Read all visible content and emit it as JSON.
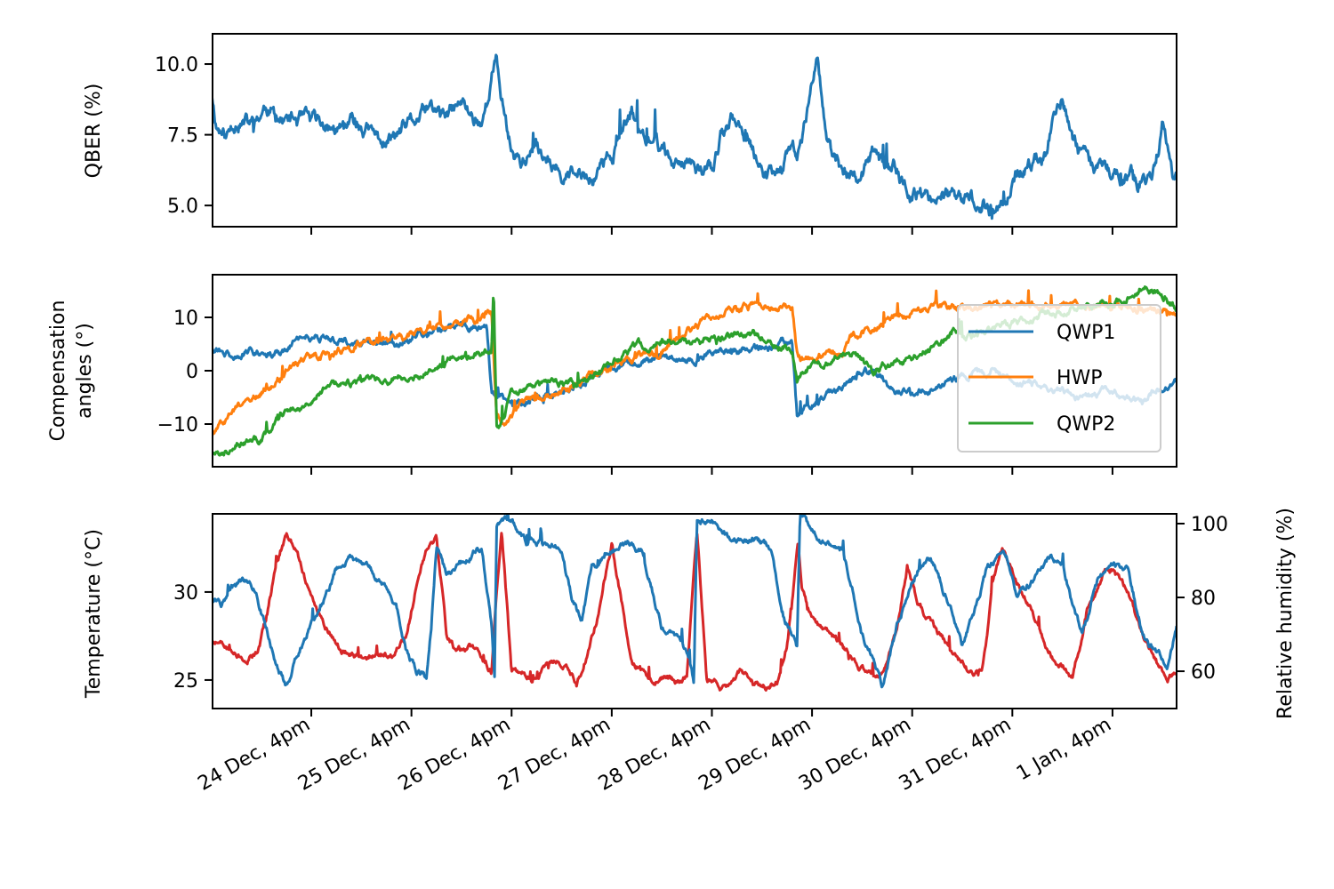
{
  "chart_data": [
    {
      "type": "line",
      "panel": "qber",
      "title": "",
      "xlabel": "",
      "ylabel": "QBER (%)",
      "x_units": "days since 24 Dec, 4pm",
      "xlim": [
        -0.986,
        8.64
      ],
      "ylim": [
        4.25,
        11.07
      ],
      "yticks": [
        5.0,
        7.5,
        10.0
      ],
      "ytick_labels": [
        "5.0",
        "7.5",
        "10.0"
      ],
      "grid": false,
      "series": [
        {
          "name": "QBER",
          "color": "#1f77b4",
          "x": [
            -0.99,
            -0.95,
            -0.85,
            -0.75,
            -0.6,
            -0.45,
            -0.3,
            -0.15,
            0.0,
            0.15,
            0.3,
            0.45,
            0.6,
            0.75,
            0.9,
            1.05,
            1.2,
            1.35,
            1.5,
            1.6,
            1.7,
            1.75,
            1.8,
            1.85,
            1.9,
            2.0,
            2.1,
            2.2,
            2.35,
            2.5,
            2.65,
            2.8,
            2.95,
            3.1,
            3.2,
            3.3,
            3.45,
            3.6,
            3.7,
            3.8,
            3.9,
            4.0,
            4.1,
            4.2,
            4.3,
            4.4,
            4.55,
            4.7,
            4.8,
            4.85,
            4.9,
            4.95,
            5.0,
            5.05,
            5.15,
            5.3,
            5.45,
            5.6,
            5.7,
            5.85,
            6.0,
            6.15,
            6.3,
            6.45,
            6.6,
            6.7,
            6.8,
            6.85,
            6.9,
            6.95,
            7.05,
            7.2,
            7.35,
            7.45,
            7.55,
            7.65,
            7.8,
            7.95,
            8.1,
            8.25,
            8.4,
            8.5,
            8.55,
            8.6,
            8.64
          ],
          "y": [
            8.9,
            7.9,
            7.4,
            8.1,
            7.8,
            8.5,
            8.0,
            8.0,
            7.9,
            7.8,
            7.6,
            7.9,
            7.5,
            7.2,
            7.6,
            8.0,
            8.4,
            8.1,
            8.6,
            8.2,
            8.0,
            8.6,
            9.6,
            10.1,
            8.8,
            7.0,
            6.6,
            6.9,
            6.8,
            6.3,
            6.0,
            5.9,
            6.6,
            7.4,
            8.3,
            7.5,
            7.2,
            6.6,
            6.3,
            6.8,
            6.2,
            6.3,
            7.5,
            8.2,
            7.4,
            6.9,
            6.2,
            6.5,
            7.0,
            6.8,
            7.4,
            8.1,
            9.5,
            10.6,
            7.1,
            6.1,
            5.9,
            6.7,
            6.4,
            6.3,
            5.2,
            5.3,
            5.5,
            5.1,
            5.2,
            5.0,
            4.9,
            5.0,
            5.1,
            5.3,
            6.1,
            6.4,
            7.0,
            8.7,
            8.0,
            7.0,
            6.4,
            6.2,
            6.0,
            5.8,
            6.0,
            7.8,
            7.0,
            6.2,
            6.0
          ]
        }
      ]
    },
    {
      "type": "line",
      "panel": "compensation",
      "title": "",
      "xlabel": "",
      "ylabel": "Compensation\nangles (°)",
      "ylabel_lines": [
        "Compensation",
        "angles (°)"
      ],
      "x_units": "days since 24 Dec, 4pm",
      "xlim": [
        -0.986,
        8.64
      ],
      "ylim": [
        -18,
        18
      ],
      "yticks": [
        -10,
        0,
        10
      ],
      "ytick_labels": [
        "−10",
        "0",
        "10"
      ],
      "grid": false,
      "legend": {
        "placement": "lower-right",
        "entries": [
          "QWP1",
          "HWP",
          "QWP2"
        ]
      },
      "series": [
        {
          "name": "QWP1",
          "color": "#1f77b4",
          "x": [
            -0.99,
            -0.8,
            -0.5,
            -0.3,
            -0.1,
            0.2,
            0.5,
            0.8,
            1.1,
            1.4,
            1.7,
            1.75,
            1.8,
            1.85,
            2.0,
            2.3,
            2.6,
            2.9,
            3.2,
            3.5,
            3.8,
            4.1,
            4.4,
            4.7,
            4.8,
            4.85,
            4.9,
            5.1,
            5.4,
            5.6,
            5.8,
            6.0,
            6.2,
            6.5,
            6.8,
            7.1,
            7.4,
            7.7,
            8.0,
            8.3,
            8.5,
            8.64
          ],
          "y": [
            4.5,
            2.5,
            4,
            3,
            7,
            6,
            5,
            5,
            7,
            8,
            8,
            8.5,
            -4,
            -5,
            -6,
            -5,
            -3,
            0,
            1,
            3,
            2,
            4,
            4,
            5,
            6,
            -8,
            -7,
            -5,
            -2,
            0,
            -3,
            -5,
            -3,
            -1,
            0,
            -2,
            -3,
            -5,
            -4,
            -6,
            -3,
            -2
          ]
        },
        {
          "name": "HWP",
          "color": "#ff7f0e",
          "x": [
            -0.99,
            -0.8,
            -0.5,
            -0.3,
            -0.1,
            0.2,
            0.5,
            0.8,
            1.1,
            1.4,
            1.7,
            1.8,
            1.85,
            1.95,
            2.1,
            2.3,
            2.6,
            2.9,
            3.2,
            3.5,
            3.8,
            4.1,
            4.4,
            4.7,
            4.8,
            4.85,
            4.9,
            5.1,
            5.3,
            5.4,
            5.6,
            5.8,
            6.0,
            6.3,
            6.6,
            6.9,
            7.2,
            7.5,
            7.8,
            8.1,
            8.4,
            8.64
          ],
          "y": [
            -12,
            -8,
            -4,
            -1,
            2,
            3,
            5,
            6,
            7,
            9,
            10,
            10.5,
            -9,
            -10,
            -6,
            -5,
            -3,
            0,
            2,
            4,
            8,
            11,
            12,
            12,
            12,
            3,
            2,
            3,
            3,
            6,
            8,
            10,
            11,
            12,
            12,
            12,
            12,
            12,
            12,
            12,
            12,
            11
          ]
        },
        {
          "name": "QWP2",
          "color": "#2ca02c",
          "x": [
            -0.99,
            -0.9,
            -0.75,
            -0.5,
            -0.3,
            -0.1,
            0.2,
            0.5,
            0.8,
            1.1,
            1.4,
            1.65,
            1.8,
            1.82,
            1.85,
            1.9,
            2.0,
            2.3,
            2.6,
            2.9,
            3.2,
            3.5,
            3.8,
            4.1,
            4.4,
            4.7,
            4.8,
            4.85,
            4.9,
            5.0,
            5.2,
            5.4,
            5.6,
            5.8,
            6.0,
            6.2,
            6.4,
            6.6,
            6.8,
            7.0,
            7.2,
            7.5,
            7.8,
            8.1,
            8.3,
            8.5,
            8.64
          ],
          "y": [
            -15,
            -16,
            -13,
            -13,
            -8,
            -6,
            -3,
            -2,
            -1,
            -1,
            2,
            3,
            4,
            16,
            -10,
            -10,
            -4,
            -3,
            -2,
            0,
            4,
            6,
            5,
            6,
            7,
            5,
            4,
            -2,
            -1,
            1,
            2,
            3,
            0,
            1,
            2,
            4,
            7,
            6,
            8,
            9,
            10,
            11,
            12,
            13,
            16,
            14,
            12
          ]
        }
      ]
    },
    {
      "type": "line",
      "panel": "environment",
      "title": "",
      "xlabel": "",
      "ylabel": "Temperature (°C)",
      "ylabel_right": "Relative humidity (%)",
      "x_units": "days since 24 Dec, 4pm",
      "xlim": [
        -0.986,
        8.64
      ],
      "ylim": [
        23.38,
        34.44
      ],
      "ylim_right": [
        49.9,
        102.65
      ],
      "yticks": [
        25,
        30
      ],
      "ytick_labels": [
        "25",
        "30"
      ],
      "yticks_right": [
        60,
        80,
        100
      ],
      "ytick_labels_right": [
        "60",
        "80",
        "100"
      ],
      "grid": false,
      "xtick_labels": [
        "24 Dec, 4pm",
        "25 Dec, 4pm",
        "26 Dec, 4pm",
        "27 Dec, 4pm",
        "28 Dec, 4pm",
        "29 Dec, 4pm",
        "30 Dec, 4pm",
        "31 Dec, 4pm",
        "1 Jan, 4pm"
      ],
      "xticks": [
        0,
        1,
        2,
        3,
        4,
        5,
        6,
        7,
        8
      ],
      "series": [
        {
          "name": "Temperature",
          "axis": "left",
          "color": "#d62728",
          "x": [
            -0.99,
            -0.85,
            -0.7,
            -0.55,
            -0.45,
            -0.35,
            -0.25,
            -0.15,
            -0.05,
            0.1,
            0.3,
            0.5,
            0.65,
            0.8,
            0.95,
            1.05,
            1.15,
            1.25,
            1.3,
            1.35,
            1.45,
            1.6,
            1.75,
            1.8,
            1.85,
            1.9,
            2.0,
            2.2,
            2.4,
            2.55,
            2.65,
            2.75,
            2.85,
            3.0,
            3.2,
            3.4,
            3.55,
            3.65,
            3.75,
            3.8,
            3.85,
            3.95,
            4.1,
            4.3,
            4.5,
            4.65,
            4.75,
            4.82,
            4.86,
            4.9,
            5.0,
            5.2,
            5.4,
            5.55,
            5.7,
            5.85,
            5.95,
            6.05,
            6.2,
            6.4,
            6.6,
            6.7,
            6.75,
            6.8,
            6.9,
            7.1,
            7.3,
            7.45,
            7.55,
            7.6,
            7.65,
            7.75,
            7.95,
            8.15,
            8.3,
            8.45,
            8.55,
            8.64
          ],
          "y": [
            27.2,
            26.8,
            26.3,
            26.5,
            28.5,
            31.5,
            33.3,
            32.5,
            30.5,
            28.5,
            26.8,
            26.2,
            26.5,
            26.4,
            27.5,
            30.5,
            32.5,
            33.0,
            30.5,
            27.5,
            26.5,
            26.8,
            26.0,
            25.5,
            30.0,
            33.5,
            25.5,
            25.2,
            26.0,
            25.8,
            24.7,
            26.5,
            28.5,
            32.8,
            26.0,
            24.8,
            25.2,
            25.0,
            25.2,
            29.5,
            33.5,
            25.0,
            24.6,
            25.5,
            24.5,
            25.0,
            27.0,
            30.5,
            33.0,
            30.0,
            28.5,
            27.5,
            26.2,
            25.3,
            25.2,
            28.0,
            31.5,
            29.5,
            28.0,
            26.5,
            25.2,
            25.8,
            27.5,
            30.5,
            32.3,
            30.0,
            27.5,
            26.0,
            25.4,
            25.2,
            26.3,
            29.0,
            31.5,
            30.0,
            27.5,
            26.0,
            25.2,
            25.5
          ]
        },
        {
          "name": "Relative humidity",
          "axis": "right",
          "color": "#1f77b4",
          "x": [
            -0.99,
            -0.9,
            -0.8,
            -0.65,
            -0.55,
            -0.45,
            -0.35,
            -0.25,
            -0.15,
            -0.05,
            0.1,
            0.25,
            0.4,
            0.55,
            0.7,
            0.85,
            0.95,
            1.05,
            1.15,
            1.2,
            1.25,
            1.35,
            1.5,
            1.7,
            1.8,
            1.83,
            1.85,
            2.0,
            2.15,
            2.35,
            2.5,
            2.6,
            2.7,
            2.8,
            2.95,
            3.1,
            3.3,
            3.5,
            3.7,
            3.78,
            3.82,
            3.85,
            4.0,
            4.2,
            4.45,
            4.6,
            4.7,
            4.8,
            4.85,
            4.88,
            4.92,
            5.1,
            5.3,
            5.5,
            5.6,
            5.7,
            5.85,
            6.0,
            6.1,
            6.2,
            6.35,
            6.5,
            6.65,
            6.75,
            6.85,
            6.95,
            7.05,
            7.2,
            7.35,
            7.5,
            7.6,
            7.7,
            7.85,
            8.0,
            8.15,
            8.3,
            8.45,
            8.55,
            8.64
          ],
          "y": [
            80,
            78,
            82,
            85,
            82,
            72,
            62,
            56,
            64,
            70,
            78,
            88,
            91,
            88,
            84,
            78,
            66,
            60,
            58,
            73,
            94,
            86,
            89,
            94,
            72,
            58,
            99,
            101,
            95,
            95,
            93,
            80,
            74,
            88,
            92,
            95,
            93,
            72,
            68,
            62,
            56,
            101,
            101,
            95,
            95,
            93,
            76,
            70,
            66,
            101,
            101,
            95,
            94,
            70,
            64,
            56,
            72,
            84,
            90,
            90,
            80,
            66,
            78,
            88,
            91,
            90,
            80,
            84,
            90,
            90,
            78,
            70,
            84,
            88,
            88,
            70,
            64,
            62,
            72
          ]
        }
      ]
    }
  ]
}
